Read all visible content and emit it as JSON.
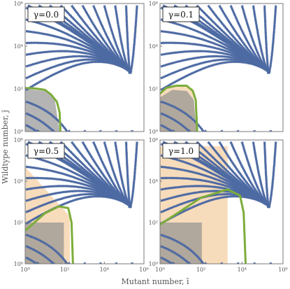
{
  "colors": {
    "stream": "#4d6aa3",
    "nullcline": "#7cad3a",
    "basin_gray": "#8c8c8c",
    "region_orange": "#f2c48f",
    "frame": "#7a7a7a"
  },
  "axes": {
    "xlabel": "Mutant number, ī",
    "ylabel": "Wildtype number, j̄"
  },
  "chart_data": {
    "type": "streamplot",
    "layout": "2x2 grid",
    "x_scale": "log",
    "y_scale": "log",
    "xlim": [
      1,
      1000000
    ],
    "ylim": [
      1,
      1000000
    ],
    "x_ticks": [
      "10⁰",
      "10²",
      "10⁴",
      "10⁶"
    ],
    "y_ticks": [
      "10⁰",
      "10²",
      "10⁴",
      "10⁶"
    ],
    "panels": [
      {
        "label": "γ=0.0",
        "nullcline": [
          [
            1,
            110
          ],
          [
            3,
            105
          ],
          [
            10,
            90
          ],
          [
            20,
            55
          ],
          [
            40,
            25
          ],
          [
            55,
            8
          ],
          [
            60,
            1
          ]
        ],
        "gray_region": [
          [
            1,
            1
          ],
          [
            1,
            100
          ],
          [
            10,
            80
          ],
          [
            30,
            40
          ],
          [
            55,
            1
          ]
        ],
        "orange_region": []
      },
      {
        "label": "γ=0.1",
        "nullcline": [
          [
            1,
            60
          ],
          [
            2,
            110
          ],
          [
            6,
            140
          ],
          [
            20,
            140
          ],
          [
            40,
            80
          ],
          [
            55,
            30
          ],
          [
            65,
            1
          ]
        ],
        "gray_region": [
          [
            1,
            1
          ],
          [
            1,
            40
          ],
          [
            4,
            90
          ],
          [
            20,
            80
          ],
          [
            45,
            30
          ],
          [
            60,
            1
          ]
        ],
        "orange_region": [
          [
            1,
            1
          ],
          [
            1,
            60
          ],
          [
            3,
            130
          ],
          [
            15,
            160
          ],
          [
            40,
            100
          ],
          [
            60,
            1
          ]
        ]
      },
      {
        "label": "γ=0.5",
        "nullcline": [
          [
            1,
            40
          ],
          [
            10,
            280
          ],
          [
            50,
            600
          ],
          [
            150,
            500
          ],
          [
            220,
            100
          ],
          [
            260,
            1
          ]
        ],
        "gray_region": [
          [
            1,
            1
          ],
          [
            1,
            100
          ],
          [
            90,
            100
          ],
          [
            90,
            1
          ]
        ],
        "orange_region": [
          [
            1,
            1
          ],
          [
            1,
            50000
          ],
          [
            180,
            200
          ],
          [
            180,
            1
          ]
        ]
      },
      {
        "label": "γ=1.0",
        "nullcline": [
          [
            1,
            80
          ],
          [
            100,
            1600
          ],
          [
            2000,
            4000
          ],
          [
            8000,
            2000
          ],
          [
            12000,
            300
          ],
          [
            15000,
            1
          ]
        ],
        "gray_region": [
          [
            1,
            1
          ],
          [
            1,
            100
          ],
          [
            110,
            100
          ],
          [
            110,
            1
          ]
        ],
        "orange_region": [
          [
            1,
            1
          ],
          [
            1,
            500000
          ],
          [
            2000,
            500000
          ],
          [
            2000,
            1
          ]
        ]
      }
    ]
  }
}
